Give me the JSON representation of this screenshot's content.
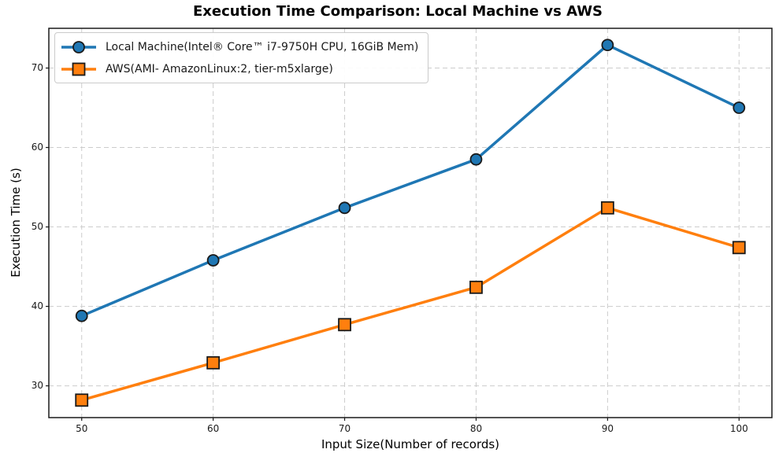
{
  "chart_data": {
    "type": "line",
    "title": "Execution Time Comparison: Local Machine vs AWS",
    "xlabel": "Input Size(Number of records)",
    "ylabel": "Execution Time (s)",
    "x": [
      50,
      60,
      70,
      80,
      90,
      100
    ],
    "xticks": [
      50,
      60,
      70,
      80,
      90,
      100
    ],
    "yticks": [
      30,
      40,
      50,
      60,
      70
    ],
    "xlim": [
      47.5,
      102.5
    ],
    "ylim": [
      26,
      75
    ],
    "grid": "dashed-both-axes",
    "legend_position": "upper-left",
    "background": "#ffffff",
    "series": [
      {
        "name": "Local Machine(Intel® Core™ i7-9750H CPU, 16GiB Mem)",
        "color": "#1f77b4",
        "marker": "circle",
        "marker_edge_color": "#1a1a1a",
        "values": [
          38.8,
          45.8,
          52.4,
          58.5,
          72.9,
          65.0
        ]
      },
      {
        "name": "AWS(AMI- AmazonLinux:2, tier-m5xlarge)",
        "color": "#ff7f0e",
        "marker": "square",
        "marker_edge_color": "#1a1a1a",
        "values": [
          28.2,
          32.9,
          37.7,
          42.4,
          52.4,
          47.4
        ]
      }
    ]
  }
}
